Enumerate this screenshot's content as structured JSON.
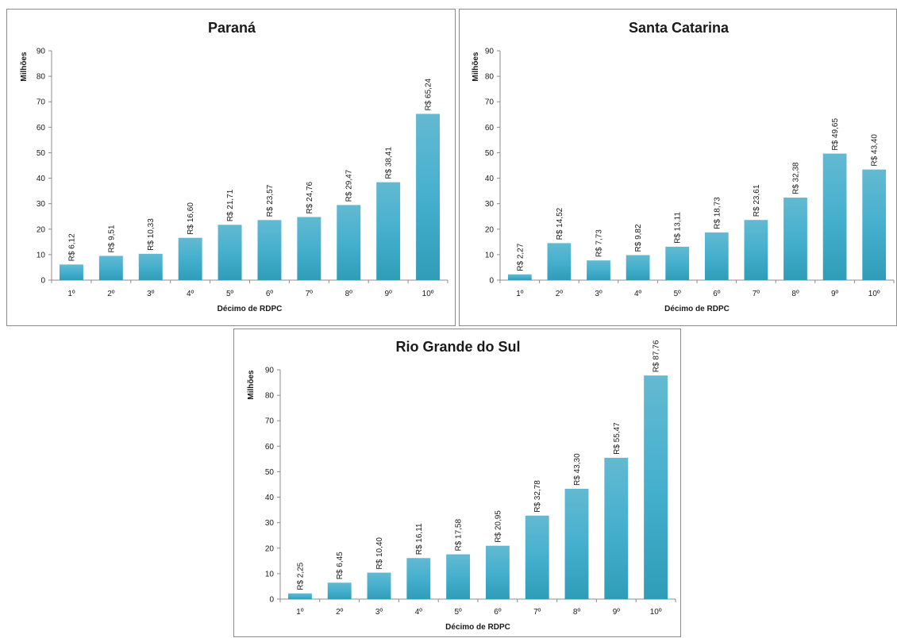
{
  "colors": {
    "bar_top": "#63b9d1",
    "bar_mid": "#45b0ce",
    "bar_bottom": "#2f9cb8",
    "axis": "#8c8c8c",
    "text": "#1a1a1a"
  },
  "chart_data": [
    {
      "type": "bar",
      "title": "Paraná",
      "xlabel": "Décimo de RDPC",
      "ylabel": "Milhões",
      "ylim": [
        0,
        90
      ],
      "yticks": [
        "0",
        "10",
        "20",
        "30",
        "40",
        "50",
        "60",
        "70",
        "80",
        "90"
      ],
      "categories": [
        "1º",
        "2º",
        "3º",
        "4º",
        "5º",
        "6º",
        "7º",
        "8º",
        "9º",
        "10º"
      ],
      "values": [
        6.12,
        9.51,
        10.33,
        16.6,
        21.71,
        23.57,
        24.76,
        29.47,
        38.41,
        65.24
      ],
      "data_labels": [
        "R$ 6,12",
        "R$ 9,51",
        "R$ 10,33",
        "R$ 16,60",
        "R$ 21,71",
        "R$ 23,57",
        "R$ 24,76",
        "R$ 29,47",
        "R$ 38,41",
        "R$ 65,24"
      ],
      "grid": false,
      "legend": "none"
    },
    {
      "type": "bar",
      "title": "Santa Catarina",
      "xlabel": "Décimo de RDPC",
      "ylabel": "Milhões",
      "ylim": [
        0,
        90
      ],
      "yticks": [
        "0",
        "10",
        "20",
        "30",
        "40",
        "50",
        "60",
        "70",
        "80",
        "90"
      ],
      "categories": [
        "1º",
        "2º",
        "3º",
        "4º",
        "5º",
        "6º",
        "7º",
        "8º",
        "9º",
        "10º"
      ],
      "values": [
        2.27,
        14.52,
        7.73,
        9.82,
        13.11,
        18.73,
        23.61,
        32.38,
        49.65,
        43.4
      ],
      "data_labels": [
        "R$ 2,27",
        "R$ 14,52",
        "R$ 7,73",
        "R$ 9,82",
        "R$ 13,11",
        "R$ 18,73",
        "R$ 23,61",
        "R$ 32,38",
        "R$ 49,65",
        "R$ 43,40"
      ],
      "grid": false,
      "legend": "none"
    },
    {
      "type": "bar",
      "title": "Rio Grande do Sul",
      "xlabel": "Décimo de RDPC",
      "ylabel": "Milhões",
      "ylim": [
        0,
        90
      ],
      "yticks": [
        "0",
        "10",
        "20",
        "30",
        "40",
        "50",
        "60",
        "70",
        "80",
        "90"
      ],
      "categories": [
        "1º",
        "2º",
        "3º",
        "4º",
        "5º",
        "6º",
        "7º",
        "8º",
        "9º",
        "10º"
      ],
      "values": [
        2.25,
        6.45,
        10.4,
        16.11,
        17.58,
        20.95,
        32.78,
        43.3,
        55.47,
        87.76
      ],
      "data_labels": [
        "R$ 2,25",
        "R$ 6,45",
        "R$ 10,40",
        "R$ 16,11",
        "R$ 17,58",
        "R$ 20,95",
        "R$ 32,78",
        "R$ 43,30",
        "R$ 55,47",
        "R$ 87,76"
      ],
      "grid": false,
      "legend": "none"
    }
  ]
}
